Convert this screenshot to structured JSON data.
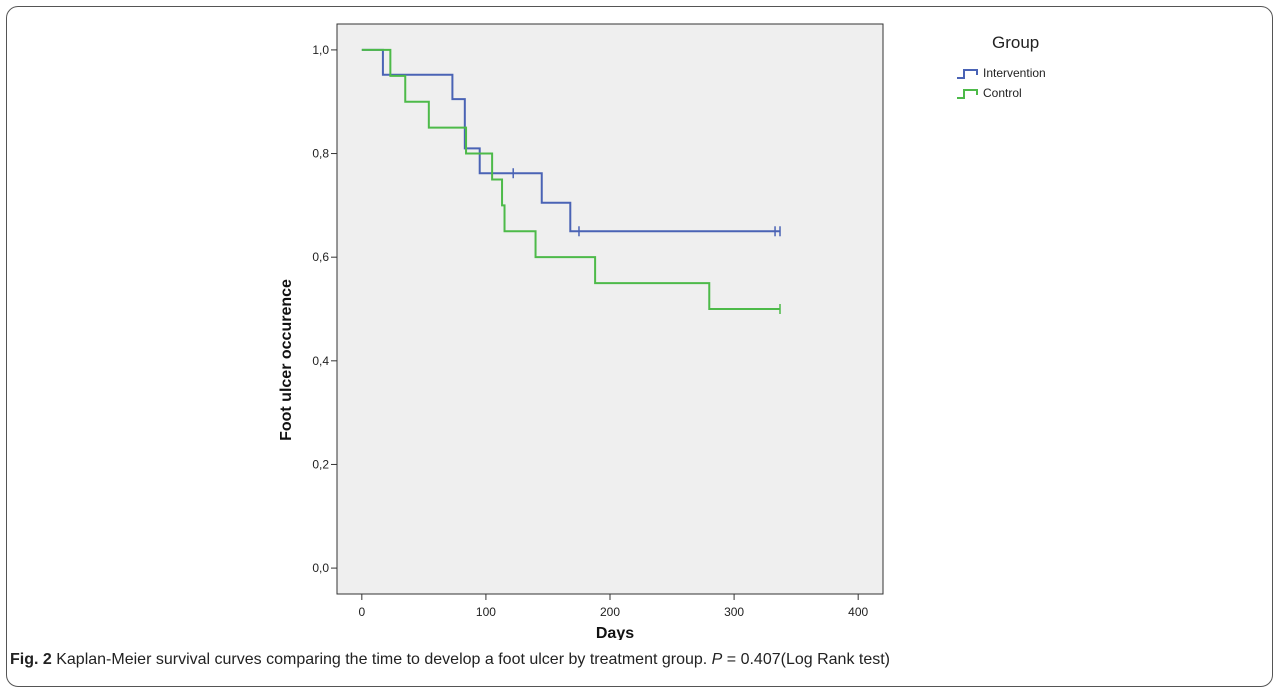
{
  "caption": {
    "label": "Fig. 2",
    "text": "Kaplan-Meier survival curves comparing the time to develop a foot ulcer by treatment group.",
    "p_symbol": "P",
    "p_rest": " = 0.407(Log Rank test)"
  },
  "chart_data": {
    "type": "line",
    "xlabel": "Days",
    "ylabel": "Foot ulcer occurence",
    "xlim": [
      -20,
      420
    ],
    "ylim": [
      -0.05,
      1.05
    ],
    "x_ticks": [
      0,
      100,
      200,
      300,
      400
    ],
    "x_tick_labels": [
      "0",
      "100",
      "200",
      "300",
      "400"
    ],
    "y_ticks": [
      0.0,
      0.2,
      0.4,
      0.6,
      0.8,
      1.0
    ],
    "y_tick_labels": [
      "0,0",
      "0,2",
      "0,4",
      "0,6",
      "0,8",
      "1,0"
    ],
    "grid": false,
    "plot_background": "#efefef",
    "legend": {
      "title": "Group",
      "placement": "right-outside-top"
    },
    "series": [
      {
        "name": "Intervention",
        "color": "#4a63b5",
        "steps": [
          [
            0,
            1.0
          ],
          [
            17,
            0.952
          ],
          [
            73,
            0.905
          ],
          [
            83,
            0.81
          ],
          [
            95,
            0.762
          ],
          [
            145,
            0.705
          ],
          [
            168,
            0.65
          ],
          [
            337,
            0.65
          ]
        ],
        "censored": [
          [
            84,
            0.81
          ],
          [
            122,
            0.762
          ],
          [
            175,
            0.65
          ],
          [
            333,
            0.65
          ],
          [
            337,
            0.65
          ]
        ]
      },
      {
        "name": "Control",
        "color": "#4dba49",
        "steps": [
          [
            0,
            1.0
          ],
          [
            23,
            0.95
          ],
          [
            35,
            0.9
          ],
          [
            54,
            0.85
          ],
          [
            84,
            0.8
          ],
          [
            105,
            0.75
          ],
          [
            113,
            0.7
          ],
          [
            115,
            0.65
          ],
          [
            140,
            0.6
          ],
          [
            188,
            0.55
          ],
          [
            280,
            0.5
          ],
          [
            337,
            0.5
          ]
        ],
        "censored": [
          [
            337,
            0.5
          ]
        ]
      }
    ]
  }
}
